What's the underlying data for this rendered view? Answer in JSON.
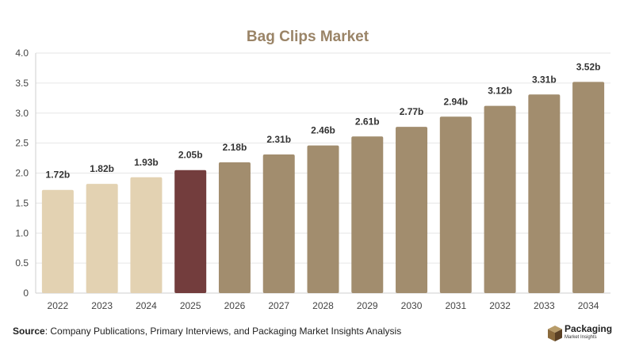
{
  "chart_data": {
    "type": "bar",
    "title": "Bag Clips Market",
    "categories": [
      "2022",
      "2023",
      "2024",
      "2025",
      "2026",
      "2027",
      "2028",
      "2029",
      "2030",
      "2031",
      "2032",
      "2033",
      "2034"
    ],
    "values": [
      1.72,
      1.82,
      1.93,
      2.05,
      2.18,
      2.31,
      2.46,
      2.61,
      2.77,
      2.94,
      3.12,
      3.31,
      3.52
    ],
    "data_labels": [
      "1.72b",
      "1.82b",
      "1.93b",
      "2.05b",
      "2.18b",
      "2.31b",
      "2.46b",
      "2.61b",
      "2.77b",
      "2.94b",
      "3.12b",
      "3.31b",
      "3.52b"
    ],
    "yticks": [
      "0",
      "0.5",
      "1.0",
      "1.5",
      "2.0",
      "2.5",
      "3.0",
      "3.5",
      "4.0"
    ],
    "ylim": [
      0,
      4.0
    ],
    "xlabel": "",
    "ylabel": "",
    "grid": "horizontal",
    "legend": "none",
    "colors": {
      "historical": "#e3d2b2",
      "base_year": "#733d3d",
      "forecast": "#a28d6e",
      "title": "#9a8467"
    },
    "bar_groups": [
      "historical",
      "historical",
      "historical",
      "base_year",
      "forecast",
      "forecast",
      "forecast",
      "forecast",
      "forecast",
      "forecast",
      "forecast",
      "forecast",
      "forecast"
    ]
  },
  "footer": {
    "source_label": "Source",
    "source_text": ": Company Publications, Primary Interviews, and Packaging Market Insights Analysis"
  },
  "logo": {
    "name": "Packaging",
    "tagline": "Market Insights",
    "icon": "box-icon"
  }
}
